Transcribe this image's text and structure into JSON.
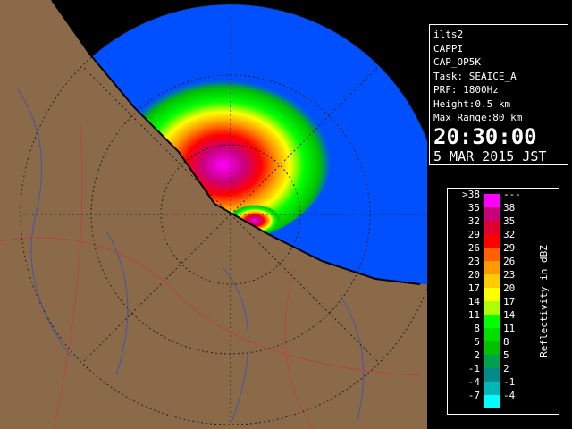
{
  "panel": {
    "lines": [
      "ilts2",
      "CAPPI",
      "CAP_OP5K",
      "Task: SEAICE_A",
      "PRF: 1800Hz",
      "Height:0.5 km",
      "Max Range:80 km"
    ],
    "time": "20:30:00",
    "date": "5 MAR 2015 JST"
  },
  "legend": {
    "title": "Reflectivity in dBZ",
    "rows": [
      {
        "low": ">38",
        "high": "---",
        "color": "#ff00ff"
      },
      {
        "low": "35",
        "high": "38",
        "color": "#c8007a"
      },
      {
        "low": "32",
        "high": "35",
        "color": "#e00030"
      },
      {
        "low": "29",
        "high": "32",
        "color": "#ff0000"
      },
      {
        "low": "26",
        "high": "29",
        "color": "#ff6000"
      },
      {
        "low": "23",
        "high": "26",
        "color": "#ff9900"
      },
      {
        "low": "20",
        "high": "23",
        "color": "#ffcc00"
      },
      {
        "low": "17",
        "high": "20",
        "color": "#ffff00"
      },
      {
        "low": "14",
        "high": "17",
        "color": "#b0ff00"
      },
      {
        "low": "11",
        "high": "14",
        "color": "#00ff00"
      },
      {
        "low": "8",
        "high": "11",
        "color": "#00e000"
      },
      {
        "low": "5",
        "high": "8",
        "color": "#00c000"
      },
      {
        "low": "2",
        "high": "5",
        "color": "#00a050"
      },
      {
        "low": "-1",
        "high": "2",
        "color": "#008a8a"
      },
      {
        "low": "-4",
        "high": "-1",
        "color": "#00b8b8"
      },
      {
        "low": "-7",
        "high": "-4",
        "color": "#00ffff"
      }
    ]
  }
}
